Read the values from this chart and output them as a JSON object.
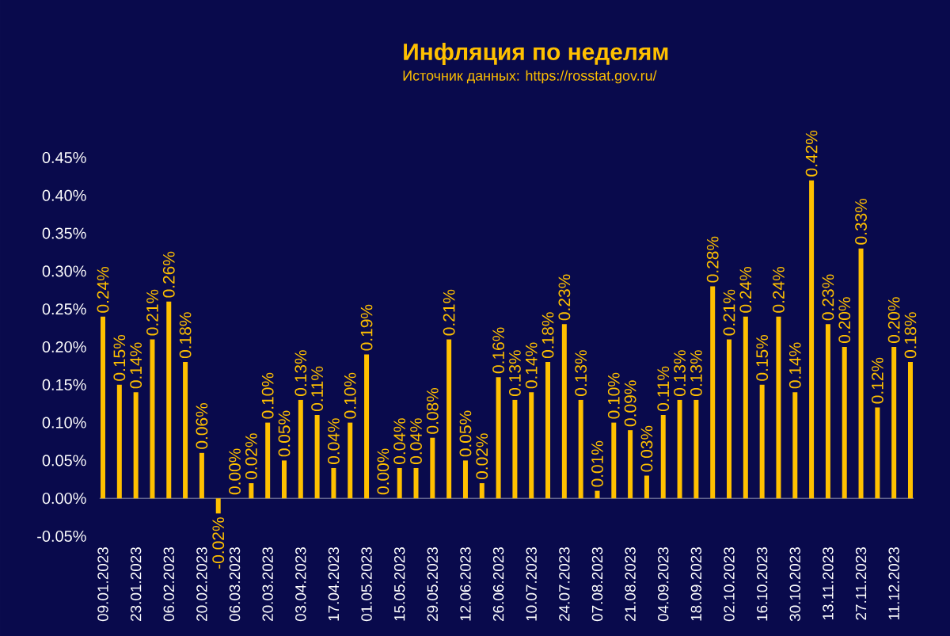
{
  "chart_data": {
    "type": "bar",
    "title": "Инфляция по неделям",
    "annotations": [
      "Источник данных: https://rosstat.gov.ru/"
    ],
    "categories": [
      "09.01.2023",
      null,
      "23.01.2023",
      null,
      "06.02.2023",
      null,
      "20.02.2023",
      null,
      "06.03.2023",
      null,
      "20.03.2023",
      null,
      "03.04.2023",
      null,
      "17.04.2023",
      null,
      "01.05.2023",
      null,
      "15.05.2023",
      null,
      "29.05.2023",
      null,
      "12.06.2023",
      null,
      "26.06.2023",
      null,
      "10.07.2023",
      null,
      "24.07.2023",
      null,
      "07.08.2023",
      null,
      "21.08.2023",
      null,
      "04.09.2023",
      null,
      "18.09.2023",
      null,
      "02.10.2023",
      null,
      "16.10.2023",
      null,
      "30.10.2023",
      null,
      "13.11.2023",
      null,
      "27.11.2023",
      null,
      "11.12.2023",
      null
    ],
    "values": [
      0.24,
      0.15,
      0.14,
      0.21,
      0.26,
      0.18,
      0.06,
      -0.02,
      0.0,
      0.02,
      0.1,
      0.05,
      0.13,
      0.11,
      0.04,
      0.1,
      0.19,
      0.0,
      0.04,
      0.04,
      0.08,
      0.21,
      0.05,
      0.02,
      0.16,
      0.13,
      0.14,
      0.18,
      0.23,
      0.13,
      0.01,
      0.1,
      0.09,
      0.03,
      0.11,
      0.13,
      0.13,
      0.28,
      0.21,
      0.24,
      0.15,
      0.24,
      0.14,
      0.42,
      0.23,
      0.2,
      0.33,
      0.12,
      0.2,
      0.18
    ],
    "value_labels": [
      "0.24%",
      "0.15%",
      "0.14%",
      "0.21%",
      "0.26%",
      "0.18%",
      "0.06%",
      "-0.02%",
      "0.00%",
      "0.02%",
      "0.10%",
      "0.05%",
      "0.13%",
      "0.11%",
      "0.04%",
      "0.10%",
      "0.19%",
      "0.00%",
      "0.04%",
      "0.04%",
      "0.08%",
      "0.21%",
      "0.05%",
      "0.02%",
      "0.16%",
      "0.13%",
      "0.14%",
      "0.18%",
      "0.23%",
      "0.13%",
      "0.01%",
      "0.10%",
      "0.09%",
      "0.03%",
      "0.11%",
      "0.13%",
      "0.13%",
      "0.28%",
      "0.21%",
      "0.24%",
      "0.15%",
      "0.24%",
      "0.14%",
      "0.42%",
      "0.23%",
      "0.20%",
      "0.33%",
      "0.12%",
      "0.20%",
      "0.18%"
    ],
    "color": "#ffc000",
    "ylim": [
      -0.05,
      0.45
    ],
    "yticks": [
      {
        "value": -0.05,
        "label": "-0.05%"
      },
      {
        "value": 0.0,
        "label": "0.00%"
      },
      {
        "value": 0.05,
        "label": "0.05%"
      },
      {
        "value": 0.1,
        "label": "0.10%"
      },
      {
        "value": 0.15,
        "label": "0.15%"
      },
      {
        "value": 0.2,
        "label": "0.20%"
      },
      {
        "value": 0.25,
        "label": "0.25%"
      },
      {
        "value": 0.3,
        "label": "0.30%"
      },
      {
        "value": 0.35,
        "label": "0.35%"
      },
      {
        "value": 0.4,
        "label": "0.40%"
      },
      {
        "value": 0.45,
        "label": "0.45%"
      }
    ]
  }
}
